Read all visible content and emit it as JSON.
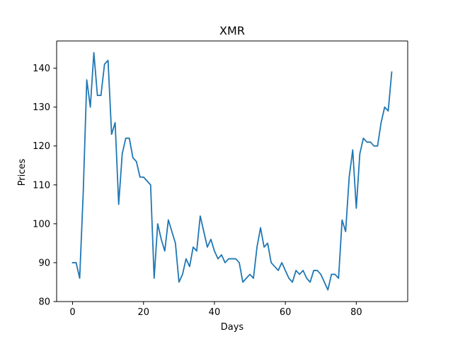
{
  "chart_data": {
    "type": "line",
    "title": "XMR",
    "xlabel": "Days",
    "ylabel": "Prices",
    "xlim": [
      -4.5,
      94.5
    ],
    "ylim": [
      80,
      147
    ],
    "xticks": [
      0,
      20,
      40,
      60,
      80
    ],
    "yticks": [
      80,
      90,
      100,
      110,
      120,
      130,
      140
    ],
    "grid": false,
    "legend": "none",
    "series": [
      {
        "color": "#1f77b4",
        "x": [
          0,
          1,
          2,
          3,
          4,
          5,
          6,
          7,
          8,
          9,
          10,
          11,
          12,
          13,
          14,
          15,
          16,
          17,
          18,
          19,
          20,
          21,
          22,
          23,
          24,
          25,
          26,
          27,
          28,
          29,
          30,
          31,
          32,
          33,
          34,
          35,
          36,
          37,
          38,
          39,
          40,
          41,
          42,
          43,
          44,
          45,
          46,
          47,
          48,
          49,
          50,
          51,
          52,
          53,
          54,
          55,
          56,
          57,
          58,
          59,
          60,
          61,
          62,
          63,
          64,
          65,
          66,
          67,
          68,
          69,
          70,
          71,
          72,
          73,
          74,
          75,
          76,
          77,
          78,
          79,
          80,
          81,
          82,
          83,
          84,
          85,
          86,
          87,
          88,
          89,
          90
        ],
        "y": [
          90,
          90,
          86,
          108,
          137,
          130,
          144,
          133,
          133,
          141,
          142,
          123,
          126,
          105,
          118,
          122,
          122,
          117,
          116,
          112,
          112,
          111,
          110,
          86,
          100,
          96,
          93,
          101,
          98,
          95,
          85,
          87,
          91,
          89,
          94,
          93,
          102,
          98,
          94,
          96,
          93,
          91,
          92,
          90,
          91,
          91,
          91,
          90,
          85,
          86,
          87,
          86,
          94,
          99,
          94,
          95,
          90,
          89,
          88,
          90,
          88,
          86,
          85,
          88,
          87,
          88,
          86,
          85,
          88,
          88,
          87,
          85,
          83,
          87,
          87,
          86,
          101,
          98,
          112,
          119,
          104,
          118,
          122,
          121,
          121,
          120,
          120,
          126,
          130,
          129,
          139
        ]
      }
    ]
  }
}
